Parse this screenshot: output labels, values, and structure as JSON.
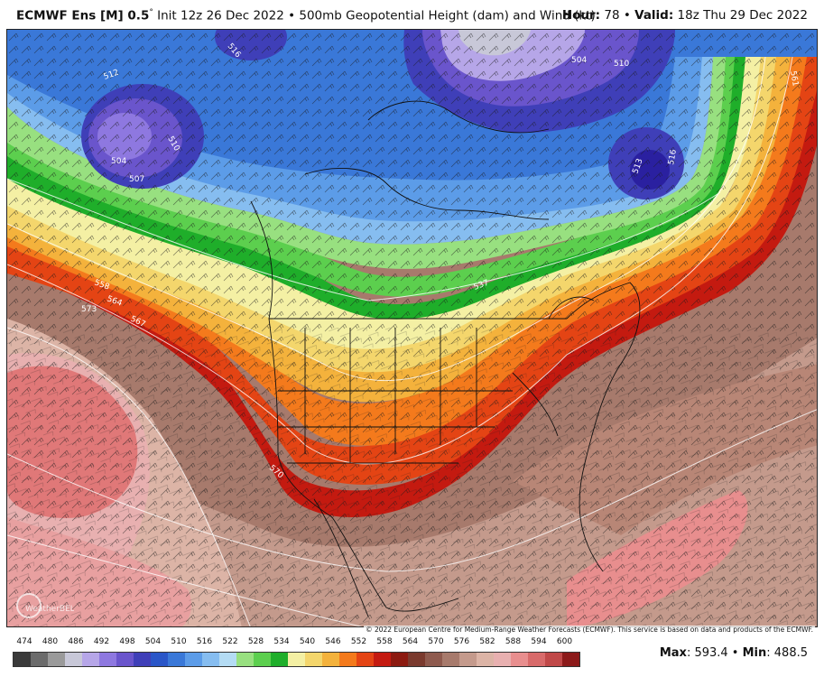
{
  "header": {
    "model": "ECMWF Ens [M] 0.5",
    "degree": "°",
    "init": " Init 12z 26 Dec 2022",
    "bullet": " • ",
    "field": "500mb Geopotential Height (dam) and Wind (kt)",
    "hour_label": "Hour:",
    "hour_value": " 78",
    "valid_label": "Valid:",
    "valid_value": " 18z Thu 29 Dec 2022"
  },
  "copyright": "© 2022 European Centre for Medium-Range Weather Forecasts (ECMWF). This service is based on data and products of the ECMWF.",
  "logo_text": "WeatherBELL",
  "legend": {
    "ticks": [
      "474",
      "480",
      "486",
      "492",
      "498",
      "504",
      "510",
      "516",
      "522",
      "528",
      "534",
      "540",
      "546",
      "552",
      "558",
      "564",
      "570",
      "576",
      "582",
      "588",
      "594",
      "600"
    ],
    "colors": [
      "#3a3a3a",
      "#6b6b6b",
      "#9a9a9a",
      "#c8c8d8",
      "#b6a6e8",
      "#8e78e0",
      "#6a55cc",
      "#3f3fb8",
      "#2a56c8",
      "#3a78d8",
      "#5c9ce8",
      "#86bdf0",
      "#b4dcf4",
      "#98e080",
      "#5ccf4e",
      "#1fae2a",
      "#f4f0a4",
      "#f4d66c",
      "#f4b23c",
      "#f47a1c",
      "#e44414",
      "#c41a10",
      "#8c1a10",
      "#7a3a2e",
      "#8e5a4e",
      "#a77a6c",
      "#c49a8c",
      "#dcb4a6",
      "#e8b0b0",
      "#e88e8e",
      "#d86a6a",
      "#c04848",
      "#8c1a1a"
    ],
    "stats_max_label": "Max",
    "stats_max": ": 593.4",
    "stats_sep": " • ",
    "stats_min_label": "Min",
    "stats_min": ": 488.5"
  },
  "contour_labels": [
    {
      "text": "504",
      "role": "low-west"
    },
    {
      "text": "507",
      "role": "low-west"
    },
    {
      "text": "510",
      "role": "low-west"
    },
    {
      "text": "512",
      "role": "low-west"
    },
    {
      "text": "516",
      "role": "north"
    },
    {
      "text": "504",
      "role": "polar"
    },
    {
      "text": "510",
      "role": "east"
    },
    {
      "text": "513",
      "role": "east"
    },
    {
      "text": "516",
      "role": "east"
    },
    {
      "text": "537",
      "role": "trough"
    },
    {
      "text": "558",
      "role": "pacific"
    },
    {
      "text": "564",
      "role": "pacific"
    },
    {
      "text": "567",
      "role": "pacific"
    },
    {
      "text": "573",
      "role": "pacific"
    },
    {
      "text": "570",
      "role": "baja"
    },
    {
      "text": "561",
      "role": "atlantic"
    }
  ]
}
